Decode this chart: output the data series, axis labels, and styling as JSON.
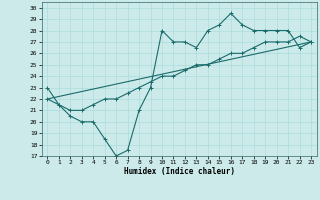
{
  "xlabel": "Humidex (Indice chaleur)",
  "bg_color": "#cceaea",
  "grid_color": "#aadddd",
  "line_color": "#1a6b6b",
  "xlim": [
    -0.5,
    23.5
  ],
  "ylim": [
    17,
    30.5
  ],
  "yticks": [
    17,
    18,
    19,
    20,
    21,
    22,
    23,
    24,
    25,
    26,
    27,
    28,
    29,
    30
  ],
  "xticks": [
    0,
    1,
    2,
    3,
    4,
    5,
    6,
    7,
    8,
    9,
    10,
    11,
    12,
    13,
    14,
    15,
    16,
    17,
    18,
    19,
    20,
    21,
    22,
    23
  ],
  "line1_x": [
    0,
    1,
    2,
    3,
    4,
    5,
    6,
    7,
    8,
    9,
    10,
    11,
    12,
    13,
    14,
    15,
    16,
    17,
    18,
    19,
    20,
    21,
    22,
    23
  ],
  "line1_y": [
    23,
    21.5,
    20.5,
    20,
    20,
    18.5,
    17,
    17.5,
    21,
    23,
    28,
    27,
    27,
    26.5,
    28,
    28.5,
    29.5,
    28.5,
    28,
    28,
    28,
    28,
    26.5,
    27
  ],
  "line2_x": [
    0,
    1,
    2,
    3,
    4,
    5,
    6,
    7,
    8,
    9,
    10,
    11,
    12,
    13,
    14,
    15,
    16,
    17,
    18,
    19,
    20,
    21,
    22,
    23
  ],
  "line2_y": [
    22,
    21.5,
    21,
    21,
    21.5,
    22,
    22,
    22.5,
    23,
    23.5,
    24,
    24,
    24.5,
    25,
    25,
    25.5,
    26,
    26,
    26.5,
    27,
    27,
    27,
    27.5,
    27
  ],
  "line3_x": [
    0,
    23
  ],
  "line3_y": [
    22,
    27
  ],
  "figsize": [
    3.2,
    2.0
  ],
  "dpi": 100
}
